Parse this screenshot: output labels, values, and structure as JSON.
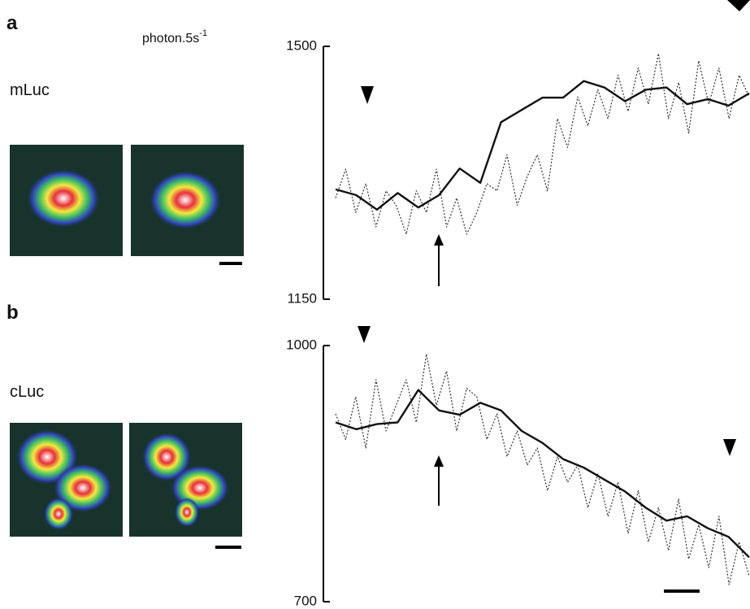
{
  "chart_data": [
    {
      "type": "line",
      "panel_label": "a",
      "label": "mLuc",
      "y_unit": "photon.5s",
      "y_unit_exponent": "-1",
      "ylim": [
        1150,
        1500
      ],
      "yticks": [
        1150,
        1500
      ],
      "series": [
        {
          "color": "#333333",
          "line_style": "dotted",
          "values": [
            1290,
            1330,
            1270,
            1310,
            1250,
            1300,
            1280,
            1240,
            1300,
            1270,
            1330,
            1250,
            1290,
            1240,
            1270,
            1310,
            1300,
            1350,
            1280,
            1320,
            1350,
            1300,
            1400,
            1360,
            1430,
            1390,
            1440,
            1400,
            1460,
            1410,
            1470,
            1420,
            1490,
            1400,
            1450,
            1380,
            1480,
            1420,
            1470,
            1400,
            1460,
            1430
          ]
        },
        {
          "color": "#111111",
          "line_style": "solid",
          "values": [
            1302,
            1294,
            1274,
            1297,
            1277,
            1294,
            1331,
            1311,
            1395,
            1412,
            1429,
            1429,
            1452,
            1443,
            1424,
            1440,
            1443,
            1420,
            1427,
            1418,
            1435
          ]
        }
      ]
    },
    {
      "type": "line",
      "panel_label": "b",
      "label": "cLuc",
      "ylim": [
        700,
        1000
      ],
      "yticks": [
        700,
        1000
      ],
      "series": [
        {
          "color": "#333333",
          "line_style": "dotted",
          "values": [
            920,
            890,
            940,
            880,
            960,
            900,
            930,
            960,
            910,
            990,
            930,
            970,
            900,
            950,
            940,
            890,
            920,
            870,
            900,
            860,
            880,
            830,
            870,
            840,
            860,
            810,
            850,
            800,
            840,
            780,
            830,
            770,
            810,
            760,
            820,
            750,
            790,
            740,
            800,
            720,
            770,
            730
          ]
        },
        {
          "color": "#111111",
          "line_style": "solid",
          "values": [
            910,
            902,
            908,
            910,
            948,
            924,
            919,
            933,
            924,
            900,
            886,
            867,
            857,
            843,
            829,
            810,
            795,
            800,
            786,
            776,
            752
          ]
        }
      ]
    }
  ]
}
